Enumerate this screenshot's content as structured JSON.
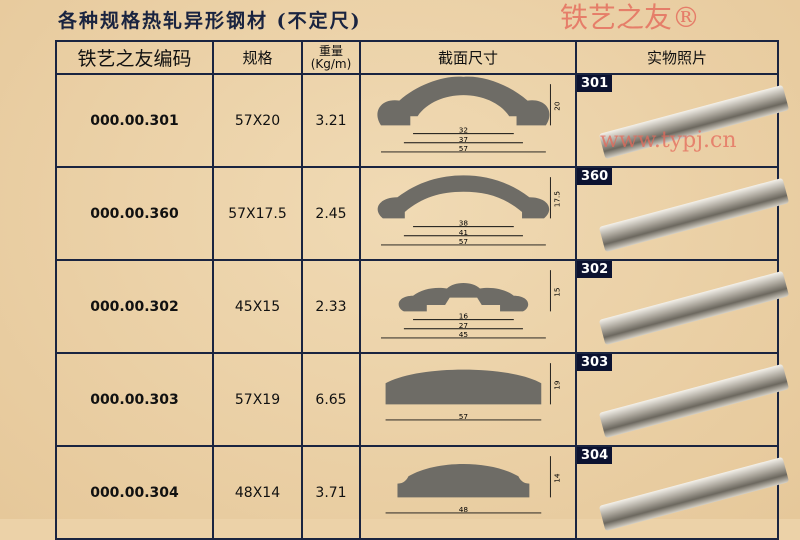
{
  "title": "各种规格热轧异形钢材 (不定尺)",
  "headers": {
    "code": "铁艺之友编码",
    "spec": "规格",
    "weight_line1": "重量",
    "weight_line2": "(Kg/m)",
    "section": "截面尺寸",
    "photo": "实物照片"
  },
  "watermark": {
    "brand": "铁艺之友®",
    "url": "www.typj.cn"
  },
  "rows": [
    {
      "code": "000.00.301",
      "spec": "57X20",
      "weight": "3.21",
      "badge": "301",
      "dims": [
        "20",
        "32",
        "37",
        "57"
      ]
    },
    {
      "code": "000.00.360",
      "spec": "57X17.5",
      "weight": "2.45",
      "badge": "360",
      "dims": [
        "17.5",
        "38",
        "41",
        "57"
      ]
    },
    {
      "code": "000.00.302",
      "spec": "45X15",
      "weight": "2.33",
      "badge": "302",
      "dims": [
        "15",
        "16",
        "27",
        "45"
      ]
    },
    {
      "code": "000.00.303",
      "spec": "57X19",
      "weight": "6.65",
      "badge": "303",
      "dims": [
        "19",
        "57"
      ]
    },
    {
      "code": "000.00.304",
      "spec": "48X14",
      "weight": "3.71",
      "badge": "304",
      "dims": [
        "14",
        "48"
      ]
    }
  ]
}
